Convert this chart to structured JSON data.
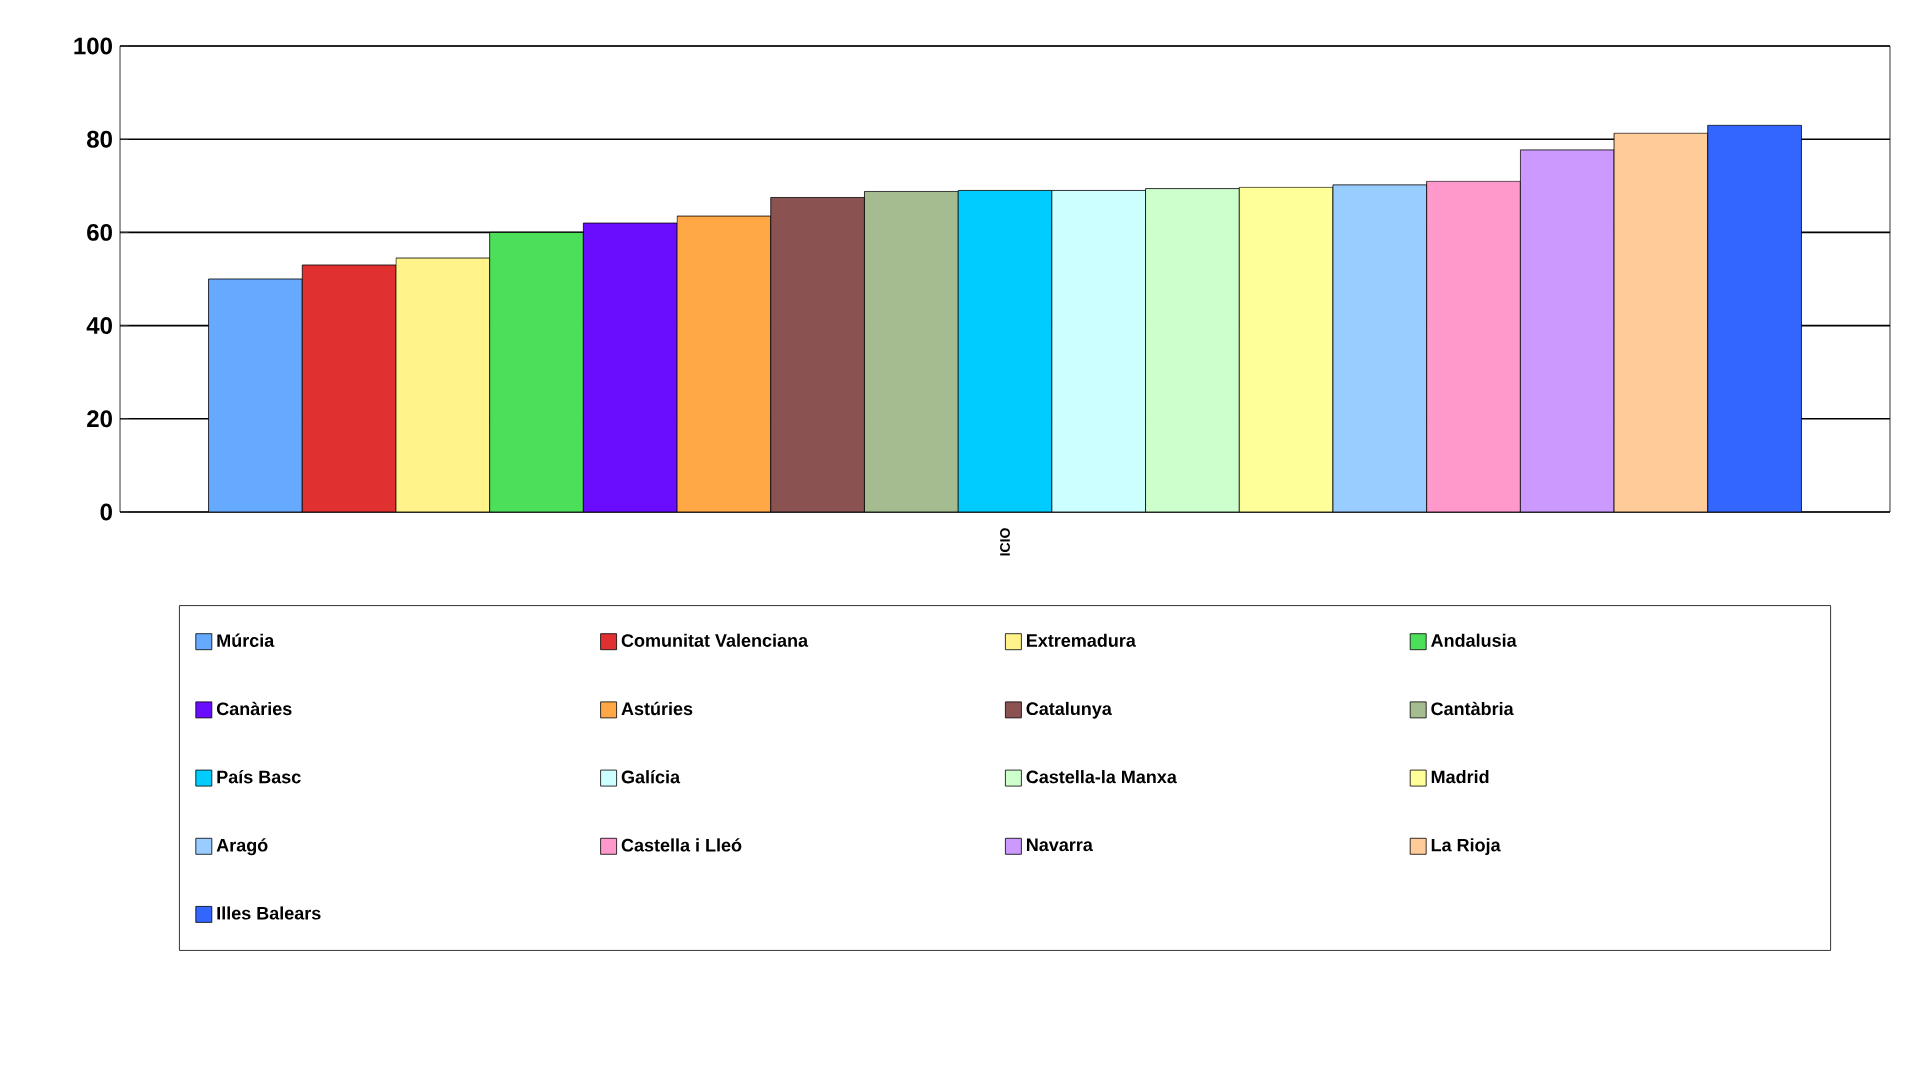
{
  "chart_data": {
    "type": "bar",
    "categories": [
      "ICIO"
    ],
    "ylim": [
      0,
      100
    ],
    "yticks": [
      0,
      20,
      40,
      60,
      80,
      100
    ],
    "grid": "y",
    "legend": "bottom",
    "series": [
      {
        "name": "Múrcia",
        "color": "#66aaff",
        "values": [
          50
        ]
      },
      {
        "name": "Comunitat Valenciana",
        "color": "#e03030",
        "values": [
          53
        ]
      },
      {
        "name": "Extremadura",
        "color": "#fff38a",
        "values": [
          54.5
        ]
      },
      {
        "name": "Andalusia",
        "color": "#4ce05a",
        "values": [
          60
        ]
      },
      {
        "name": "Canàries",
        "color": "#6a0dff",
        "values": [
          62
        ]
      },
      {
        "name": "Astúries",
        "color": "#ffa845",
        "values": [
          63.5
        ]
      },
      {
        "name": "Catalunya",
        "color": "#8b5252",
        "values": [
          67.5
        ]
      },
      {
        "name": "Cantàbria",
        "color": "#a4bc90",
        "values": [
          68.8
        ]
      },
      {
        "name": "País Basc",
        "color": "#00ccff",
        "values": [
          69
        ]
      },
      {
        "name": "Galícia",
        "color": "#ccffff",
        "values": [
          69
        ]
      },
      {
        "name": "Castella-la Manxa",
        "color": "#ccffcc",
        "values": [
          69.4
        ]
      },
      {
        "name": "Madrid",
        "color": "#ffff99",
        "values": [
          69.7
        ]
      },
      {
        "name": "Aragó",
        "color": "#99ccff",
        "values": [
          70.2
        ]
      },
      {
        "name": "Castella i Lleó",
        "color": "#ff99cc",
        "values": [
          71
        ]
      },
      {
        "name": "Navarra",
        "color": "#cc99ff",
        "values": [
          77.7
        ]
      },
      {
        "name": "La Rioja",
        "color": "#ffcc99",
        "values": [
          81.3
        ]
      },
      {
        "name": "Illes Balears",
        "color": "#3366ff",
        "values": [
          83
        ]
      }
    ]
  }
}
